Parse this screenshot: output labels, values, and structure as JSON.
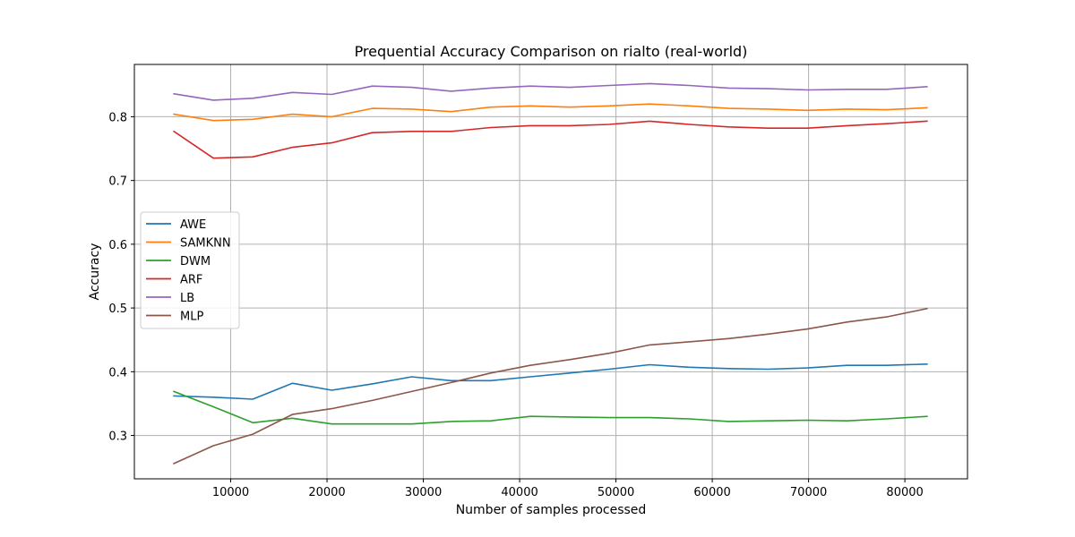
{
  "chart_data": {
    "type": "line",
    "title": "Prequential Accuracy Comparison on rialto (real-world)",
    "xlabel": "Number of samples processed",
    "ylabel": "Accuracy",
    "xlim": [
      0,
      86500
    ],
    "ylim": [
      0.232,
      0.882
    ],
    "xticks": [
      10000,
      20000,
      30000,
      40000,
      50000,
      60000,
      70000,
      80000
    ],
    "xtick_labels": [
      "10000",
      "20000",
      "30000",
      "40000",
      "50000",
      "60000",
      "70000",
      "80000"
    ],
    "yticks": [
      0.3,
      0.4,
      0.5,
      0.6,
      0.7,
      0.8
    ],
    "ytick_labels": [
      "0.3",
      "0.4",
      "0.5",
      "0.6",
      "0.7",
      "0.8"
    ],
    "grid": true,
    "legend_position": "center-left",
    "x": [
      4100,
      8200,
      12300,
      16400,
      20500,
      24700,
      28800,
      32900,
      37000,
      41100,
      45200,
      49300,
      53500,
      57600,
      61700,
      65800,
      69900,
      74000,
      78100,
      82300
    ],
    "series": [
      {
        "name": "AWE",
        "color": "#1f77b4",
        "values": [
          0.362,
          0.36,
          0.357,
          0.382,
          0.371,
          0.381,
          0.392,
          0.386,
          0.386,
          0.392,
          0.398,
          0.404,
          0.411,
          0.407,
          0.405,
          0.404,
          0.406,
          0.41,
          0.41,
          0.412
        ]
      },
      {
        "name": "SAMKNN",
        "color": "#ff7f0e",
        "values": [
          0.804,
          0.794,
          0.796,
          0.804,
          0.8,
          0.813,
          0.812,
          0.808,
          0.815,
          0.817,
          0.815,
          0.817,
          0.82,
          0.817,
          0.813,
          0.812,
          0.81,
          0.812,
          0.811,
          0.814
        ]
      },
      {
        "name": "DWM",
        "color": "#2ca02c",
        "values": [
          0.369,
          0.345,
          0.32,
          0.327,
          0.318,
          0.318,
          0.318,
          0.322,
          0.323,
          0.33,
          0.329,
          0.328,
          0.328,
          0.326,
          0.322,
          0.323,
          0.324,
          0.323,
          0.326,
          0.33
        ]
      },
      {
        "name": "ARF",
        "color": "#d62728",
        "values": [
          0.777,
          0.735,
          0.737,
          0.752,
          0.759,
          0.775,
          0.777,
          0.777,
          0.783,
          0.786,
          0.786,
          0.788,
          0.793,
          0.788,
          0.784,
          0.782,
          0.782,
          0.786,
          0.789,
          0.793
        ]
      },
      {
        "name": "LB",
        "color": "#9467bd",
        "values": [
          0.836,
          0.826,
          0.829,
          0.838,
          0.835,
          0.848,
          0.846,
          0.84,
          0.845,
          0.848,
          0.846,
          0.849,
          0.852,
          0.849,
          0.845,
          0.844,
          0.842,
          0.843,
          0.843,
          0.847
        ]
      },
      {
        "name": "MLP",
        "color": "#8c564b",
        "values": [
          0.256,
          0.284,
          0.302,
          0.333,
          0.342,
          0.355,
          0.369,
          0.383,
          0.398,
          0.41,
          0.419,
          0.429,
          0.442,
          0.447,
          0.452,
          0.459,
          0.467,
          0.478,
          0.486,
          0.499
        ]
      }
    ]
  }
}
